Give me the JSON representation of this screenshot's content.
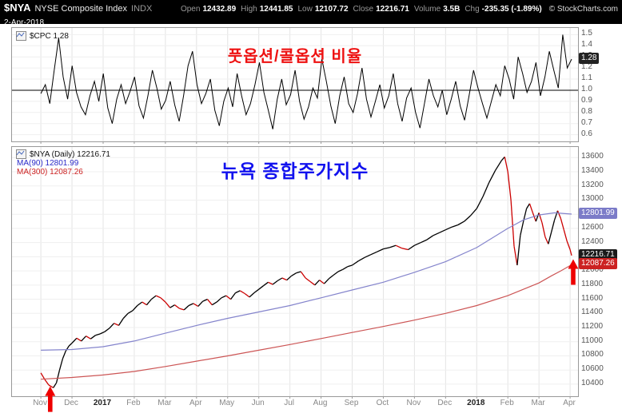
{
  "header": {
    "symbol": "$NYA",
    "name": "NYSE Composite Index",
    "exchange": "INDX",
    "date": "2-Apr-2018",
    "copyright": "© StockCharts.com",
    "quote": [
      {
        "label": "Open",
        "value": "12432.89"
      },
      {
        "label": "High",
        "value": "12441.85"
      },
      {
        "label": "Low",
        "value": "12107.72"
      },
      {
        "label": "Close",
        "value": "12216.71"
      },
      {
        "label": "Volume",
        "value": "3.5B"
      },
      {
        "label": "Chg",
        "value": "-235.35 (-1.89%)"
      }
    ]
  },
  "cpc_panel": {
    "legend": "$CPC 1.28",
    "annotation_title": "풋옵션/콜옵션 비율",
    "last_label": "1.28"
  },
  "nya_panel": {
    "legend_price": "$NYA (Daily) 12216.71",
    "legend_ma90": "MA(90) 12801.99",
    "legend_ma300": "MA(300) 12087.26",
    "annotation_title": "뉴욕 종합주가지수"
  },
  "colors": {
    "header_bg": "#000000",
    "title_red": "#ee1111",
    "title_blue": "#1111ee",
    "cpc_line": "#000000",
    "price_up": "#000000",
    "price_down": "#cc0000",
    "ma90_line": "#8484cc",
    "ma300_line": "#cc5555",
    "label_blue_bg": "#7b7bc8",
    "label_black_bg": "#1a1a1a",
    "label_red_bg": "#cc2222",
    "arrow_red": "#ee0000"
  },
  "chart_data": [
    {
      "type": "line",
      "name": "$CPC Put/Call Ratio",
      "title": "풋옵션/콜옵션 비율",
      "legend": "$CPC 1.28",
      "last_value": 1.28,
      "ylim": [
        0.54,
        1.56
      ],
      "yticks": [
        1.5,
        1.4,
        1.3,
        1.2,
        1.1,
        1.0,
        0.9,
        0.8,
        0.7,
        0.6
      ],
      "baseline": 1.0,
      "x_months": 17.05,
      "line_color": "#000000",
      "value_labels": [
        {
          "text": "1.28",
          "value": 1.28,
          "bg": "#222222"
        }
      ],
      "values": [
        0.97,
        1.05,
        0.88,
        1.18,
        1.47,
        1.12,
        0.92,
        1.22,
        0.98,
        0.85,
        0.78,
        0.95,
        1.08,
        0.9,
        1.15,
        0.84,
        0.7,
        0.92,
        1.05,
        0.88,
        0.99,
        1.12,
        0.86,
        0.75,
        0.95,
        1.18,
        1.02,
        0.83,
        0.91,
        1.08,
        0.87,
        0.72,
        0.95,
        1.22,
        1.35,
        1.05,
        0.88,
        0.97,
        1.1,
        0.82,
        0.68,
        0.9,
        1.02,
        0.85,
        1.15,
        0.95,
        0.78,
        0.88,
        1.05,
        1.25,
        0.98,
        0.82,
        0.65,
        0.92,
        1.1,
        0.87,
        0.96,
        1.18,
        0.9,
        0.74,
        0.85,
        1.02,
        0.93,
        1.28,
        1.08,
        0.86,
        0.7,
        0.95,
        1.12,
        0.88,
        0.8,
        0.97,
        1.2,
        0.92,
        0.76,
        0.9,
        1.05,
        0.84,
        0.95,
        1.15,
        0.88,
        0.72,
        0.93,
        1.02,
        0.8,
        0.66,
        0.88,
        1.1,
        0.95,
        0.85,
        1.0,
        0.78,
        0.92,
        1.08,
        0.86,
        0.73,
        0.95,
        1.18,
        1.02,
        0.88,
        0.75,
        0.9,
        1.05,
        0.95,
        1.22,
        1.1,
        0.92,
        1.3,
        1.15,
        0.98,
        1.08,
        1.25,
        0.95,
        1.12,
        1.35,
        1.18,
        1.02,
        1.5,
        1.2,
        1.28
      ]
    },
    {
      "type": "line",
      "name": "$NYA NYSE Composite Index (Daily)",
      "title": "뉴욕 종합주가지수",
      "last_value": 12216.71,
      "ylim": [
        10230,
        13750
      ],
      "tick_format": "int",
      "yticks": [
        13600,
        13400,
        13200,
        13000,
        12800,
        12600,
        12400,
        12200,
        12000,
        11800,
        11600,
        11400,
        11200,
        11000,
        10800,
        10600,
        10400
      ],
      "x_labels": [
        "Nov",
        "Dec",
        "2017",
        "Feb",
        "Mar",
        "Apr",
        "May",
        "Jun",
        "Jul",
        "Aug",
        "Sep",
        "Oct",
        "Nov",
        "Dec",
        "2018",
        "Feb",
        "Mar",
        "Apr"
      ],
      "value_labels": [
        {
          "text": "12801.99",
          "value": 12801.99,
          "bg": "#7b7bc8"
        },
        {
          "text": "12216.71",
          "value": 12216.71,
          "bg": "#1a1a1a"
        },
        {
          "text": "12087.26",
          "value": 12087.26,
          "bg": "#cc2222"
        }
      ],
      "annotations": [
        {
          "type": "up-arrow",
          "t": 0.3,
          "value": 10370,
          "color": "#ee0000"
        },
        {
          "type": "up-arrow",
          "t": 17.1,
          "value": 12165,
          "color": "#ee0000"
        }
      ],
      "series": [
        {
          "name": "NYA price",
          "style": "updown",
          "up_color": "#000000",
          "down_color": "#cc0000",
          "last": 12216.71,
          "points": [
            [
              0,
              10560
            ],
            [
              0.12,
              10470
            ],
            [
              0.25,
              10390
            ],
            [
              0.4,
              10350
            ],
            [
              0.5,
              10420
            ],
            [
              0.6,
              10600
            ],
            [
              0.7,
              10760
            ],
            [
              0.8,
              10870
            ],
            [
              0.9,
              10940
            ],
            [
              1.0,
              10980
            ],
            [
              1.15,
              11050
            ],
            [
              1.3,
              11010
            ],
            [
              1.45,
              11080
            ],
            [
              1.6,
              11040
            ],
            [
              1.75,
              11090
            ],
            [
              1.9,
              11110
            ],
            [
              2.05,
              11140
            ],
            [
              2.2,
              11190
            ],
            [
              2.35,
              11260
            ],
            [
              2.5,
              11230
            ],
            [
              2.65,
              11330
            ],
            [
              2.8,
              11400
            ],
            [
              2.95,
              11440
            ],
            [
              3.1,
              11510
            ],
            [
              3.25,
              11560
            ],
            [
              3.4,
              11520
            ],
            [
              3.55,
              11600
            ],
            [
              3.7,
              11650
            ],
            [
              3.85,
              11620
            ],
            [
              4.0,
              11560
            ],
            [
              4.15,
              11480
            ],
            [
              4.3,
              11520
            ],
            [
              4.45,
              11470
            ],
            [
              4.6,
              11450
            ],
            [
              4.75,
              11510
            ],
            [
              4.9,
              11540
            ],
            [
              5.05,
              11500
            ],
            [
              5.2,
              11570
            ],
            [
              5.35,
              11600
            ],
            [
              5.5,
              11520
            ],
            [
              5.65,
              11560
            ],
            [
              5.8,
              11620
            ],
            [
              5.95,
              11650
            ],
            [
              6.1,
              11600
            ],
            [
              6.25,
              11690
            ],
            [
              6.4,
              11720
            ],
            [
              6.55,
              11680
            ],
            [
              6.7,
              11630
            ],
            [
              6.85,
              11690
            ],
            [
              7.0,
              11740
            ],
            [
              7.15,
              11790
            ],
            [
              7.3,
              11840
            ],
            [
              7.45,
              11810
            ],
            [
              7.6,
              11860
            ],
            [
              7.75,
              11900
            ],
            [
              7.9,
              11870
            ],
            [
              8.05,
              11930
            ],
            [
              8.2,
              11970
            ],
            [
              8.35,
              11990
            ],
            [
              8.5,
              11900
            ],
            [
              8.65,
              11850
            ],
            [
              8.8,
              11800
            ],
            [
              8.95,
              11870
            ],
            [
              9.1,
              11820
            ],
            [
              9.25,
              11890
            ],
            [
              9.4,
              11940
            ],
            [
              9.55,
              11990
            ],
            [
              9.7,
              12020
            ],
            [
              9.85,
              12060
            ],
            [
              10.0,
              12080
            ],
            [
              10.2,
              12140
            ],
            [
              10.4,
              12190
            ],
            [
              10.6,
              12230
            ],
            [
              10.8,
              12270
            ],
            [
              11.0,
              12310
            ],
            [
              11.2,
              12330
            ],
            [
              11.4,
              12360
            ],
            [
              11.6,
              12320
            ],
            [
              11.8,
              12300
            ],
            [
              12.0,
              12360
            ],
            [
              12.2,
              12400
            ],
            [
              12.4,
              12440
            ],
            [
              12.6,
              12500
            ],
            [
              12.8,
              12540
            ],
            [
              13.0,
              12580
            ],
            [
              13.2,
              12620
            ],
            [
              13.4,
              12650
            ],
            [
              13.6,
              12700
            ],
            [
              13.8,
              12780
            ],
            [
              14.0,
              12880
            ],
            [
              14.2,
              13050
            ],
            [
              14.4,
              13250
            ],
            [
              14.6,
              13420
            ],
            [
              14.8,
              13560
            ],
            [
              14.9,
              13610
            ],
            [
              15.0,
              13400
            ],
            [
              15.1,
              13000
            ],
            [
              15.2,
              12350
            ],
            [
              15.3,
              12080
            ],
            [
              15.4,
              12500
            ],
            [
              15.5,
              12700
            ],
            [
              15.6,
              12880
            ],
            [
              15.7,
              12950
            ],
            [
              15.8,
              12820
            ],
            [
              15.9,
              12700
            ],
            [
              16.0,
              12820
            ],
            [
              16.1,
              12680
            ],
            [
              16.2,
              12480
            ],
            [
              16.3,
              12380
            ],
            [
              16.4,
              12550
            ],
            [
              16.5,
              12720
            ],
            [
              16.6,
              12850
            ],
            [
              16.7,
              12740
            ],
            [
              16.8,
              12580
            ],
            [
              16.9,
              12420
            ],
            [
              17.0,
              12300
            ],
            [
              17.05,
              12216.71
            ]
          ]
        },
        {
          "name": "MA(90)",
          "color": "#8484cc",
          "last": 12801.99,
          "points": [
            [
              0,
              10880
            ],
            [
              1,
              10890
            ],
            [
              2,
              10930
            ],
            [
              3,
              11010
            ],
            [
              4,
              11120
            ],
            [
              5,
              11230
            ],
            [
              6,
              11330
            ],
            [
              7,
              11420
            ],
            [
              8,
              11510
            ],
            [
              9,
              11620
            ],
            [
              10,
              11730
            ],
            [
              11,
              11840
            ],
            [
              12,
              11980
            ],
            [
              13,
              12130
            ],
            [
              14,
              12330
            ],
            [
              15,
              12600
            ],
            [
              15.5,
              12720
            ],
            [
              16,
              12790
            ],
            [
              16.5,
              12820
            ],
            [
              17.05,
              12802
            ]
          ]
        },
        {
          "name": "MA(300)",
          "color": "#cc5555",
          "last": 12087.26,
          "points": [
            [
              0,
              10470
            ],
            [
              1,
              10495
            ],
            [
              2,
              10530
            ],
            [
              3,
              10580
            ],
            [
              4,
              10650
            ],
            [
              5,
              10725
            ],
            [
              6,
              10800
            ],
            [
              7,
              10880
            ],
            [
              8,
              10960
            ],
            [
              9,
              11045
            ],
            [
              10,
              11130
            ],
            [
              11,
              11215
            ],
            [
              12,
              11305
            ],
            [
              13,
              11400
            ],
            [
              14,
              11510
            ],
            [
              15,
              11650
            ],
            [
              16,
              11830
            ],
            [
              16.4,
              11930
            ],
            [
              16.7,
              12000
            ],
            [
              17.05,
              12087.26
            ]
          ]
        }
      ]
    }
  ]
}
